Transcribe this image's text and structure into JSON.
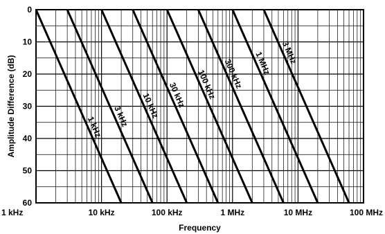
{
  "chart_data": {
    "type": "line",
    "title": "",
    "xlabel": "Frequency",
    "ylabel": "Amplitude Difference (dB)",
    "x_scale": "log",
    "xlim": [
      1000,
      100000000
    ],
    "ylim": [
      0,
      60
    ],
    "y_inverted": true,
    "grid": true,
    "x_ticks": [
      {
        "value": 1000,
        "label": "1 kHz"
      },
      {
        "value": 10000,
        "label": "10 kHz"
      },
      {
        "value": 100000,
        "label": "100 kHz"
      },
      {
        "value": 1000000,
        "label": "1 MHz"
      },
      {
        "value": 10000000,
        "label": "10 MHz"
      },
      {
        "value": 100000000,
        "label": "100 MHz"
      }
    ],
    "y_ticks": [
      {
        "value": 0,
        "label": "0"
      },
      {
        "value": 10,
        "label": "10"
      },
      {
        "value": 20,
        "label": "20"
      },
      {
        "value": 30,
        "label": "30"
      },
      {
        "value": 40,
        "label": "40"
      },
      {
        "value": 50,
        "label": "50"
      },
      {
        "value": 60,
        "label": "60"
      }
    ],
    "series": [
      {
        "name": "1 kHz",
        "points": [
          [
            1000,
            0
          ],
          [
            20000,
            60
          ]
        ]
      },
      {
        "name": "3 kHz",
        "points": [
          [
            3000,
            0
          ],
          [
            60000,
            60
          ]
        ]
      },
      {
        "name": "10 kHz",
        "points": [
          [
            10000,
            0
          ],
          [
            200000,
            60
          ]
        ]
      },
      {
        "name": "30 kHz",
        "points": [
          [
            30000,
            0
          ],
          [
            600000,
            60
          ]
        ]
      },
      {
        "name": "100 kHz",
        "points": [
          [
            100000,
            0
          ],
          [
            2000000,
            60
          ]
        ]
      },
      {
        "name": "300 kHz",
        "points": [
          [
            300000,
            0
          ],
          [
            6000000,
            60
          ]
        ]
      },
      {
        "name": "1 MHz",
        "points": [
          [
            1000000,
            0
          ],
          [
            20000000,
            60
          ]
        ]
      },
      {
        "name": "3 MHz",
        "points": [
          [
            3000000,
            0
          ],
          [
            60000000,
            60
          ]
        ]
      }
    ]
  }
}
